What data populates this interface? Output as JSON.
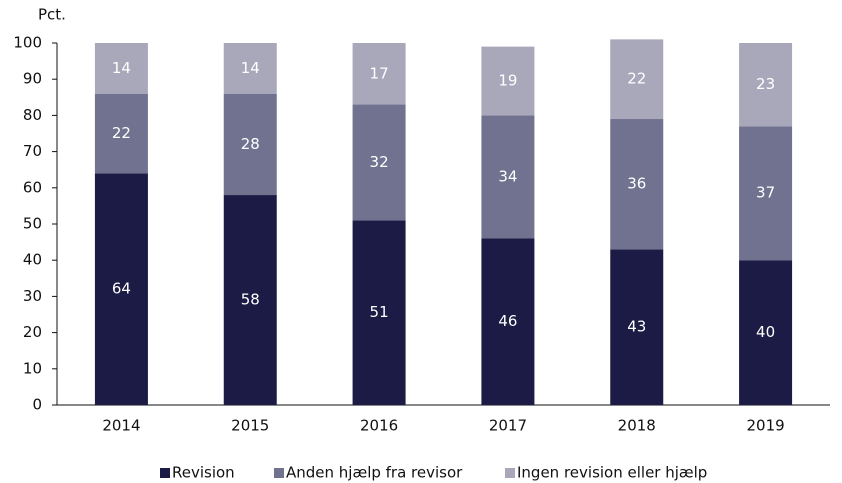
{
  "chart_data": {
    "type": "stacked_bar",
    "y_axis_label": "Pct.",
    "categories": [
      "2014",
      "2015",
      "2016",
      "2017",
      "2018",
      "2019"
    ],
    "series": [
      {
        "name": "Revision",
        "color": "#1c1b45",
        "values": [
          64,
          58,
          51,
          46,
          43,
          40
        ]
      },
      {
        "name": "Anden hjælp fra revisor",
        "color": "#717290",
        "values": [
          22,
          28,
          32,
          34,
          36,
          37
        ]
      },
      {
        "name": "Ingen revision eller hjælp",
        "color": "#a8a8ba",
        "values": [
          14,
          14,
          17,
          19,
          22,
          23
        ]
      }
    ],
    "ylim": [
      0,
      100
    ],
    "yticks": [
      0,
      10,
      20,
      30,
      40,
      50,
      60,
      70,
      80,
      90,
      100
    ],
    "grid": false,
    "legend": "bottom"
  }
}
